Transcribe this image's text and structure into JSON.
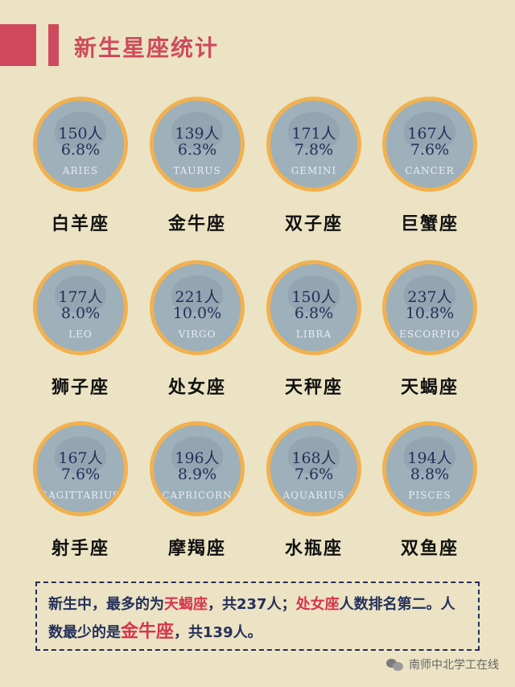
{
  "title": "新生星座统计",
  "signs": [
    {
      "count": "150人",
      "pct": "6.8%",
      "latin": "ARIES",
      "name": "白羊座"
    },
    {
      "count": "139人",
      "pct": "6.3%",
      "latin": "TAURUS",
      "name": "金牛座"
    },
    {
      "count": "171人",
      "pct": "7.8%",
      "latin": "GEMINI",
      "name": "双子座"
    },
    {
      "count": "167人",
      "pct": "7.6%",
      "latin": "CANCER",
      "name": "巨蟹座"
    },
    {
      "count": "177人",
      "pct": "8.0%",
      "latin": "LEO",
      "name": "狮子座"
    },
    {
      "count": "221人",
      "pct": "10.0%",
      "latin": "VIRGO",
      "name": "处女座"
    },
    {
      "count": "150人",
      "pct": "6.8%",
      "latin": "LIBRA",
      "name": "天秤座"
    },
    {
      "count": "237人",
      "pct": "10.8%",
      "latin": "ESCORPIO",
      "name": "天蝎座"
    },
    {
      "count": "167人",
      "pct": "7.6%",
      "latin": "SAGITTARIUS",
      "name": "射手座"
    },
    {
      "count": "196人",
      "pct": "8.9%",
      "latin": "CAPRICORN",
      "name": "摩羯座"
    },
    {
      "count": "168人",
      "pct": "7.6%",
      "latin": "AQUARIUS",
      "name": "水瓶座"
    },
    {
      "count": "194人",
      "pct": "8.8%",
      "latin": "PISCES",
      "name": "双鱼座"
    }
  ],
  "summary": {
    "p1": "新生中，最多的为",
    "most": "天蝎座",
    "p2": "，共237人；",
    "second": "处女座",
    "p3": "人数排名第二。人数最少的是",
    "least": "金牛座",
    "p4": "，共139人。"
  },
  "footer": "南师中北学工在线",
  "colors": {
    "accent": "#cf4a5d",
    "medal_ring": "#f1b14f",
    "medal_fill": "#9eb0ba",
    "text_dark": "#25305a",
    "background": "#ebe3c3"
  }
}
